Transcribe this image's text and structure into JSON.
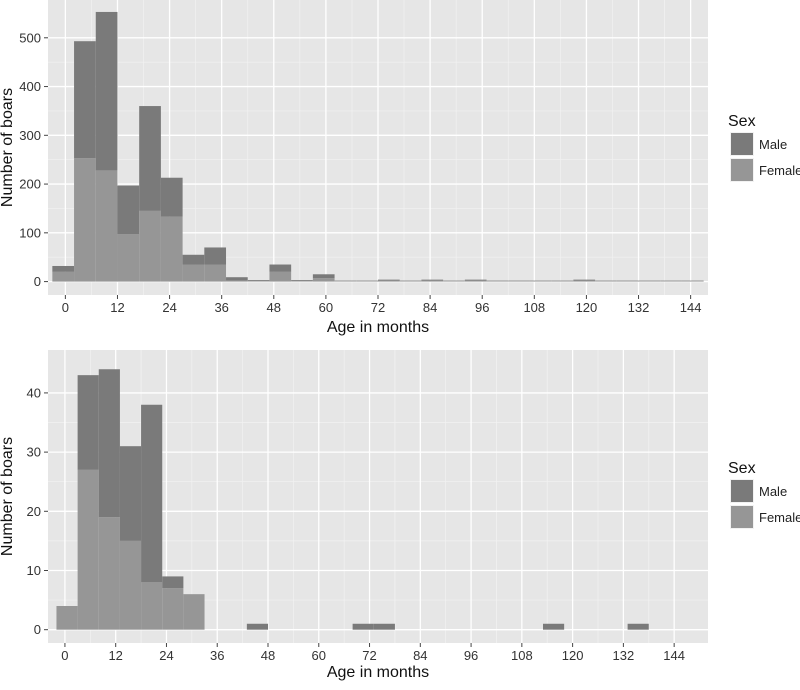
{
  "chart_data": [
    {
      "type": "bar",
      "stacked": true,
      "xlabel": "Age in months",
      "ylabel": "Number of boars",
      "ylim": [
        0,
        550
      ],
      "y_ticks": [
        0,
        100,
        200,
        300,
        400,
        500
      ],
      "x_ticks": [
        0,
        12,
        24,
        36,
        48,
        60,
        72,
        84,
        96,
        108,
        120,
        132,
        144
      ],
      "xlim": [
        -4,
        148
      ],
      "bin_width": 5,
      "grid": true,
      "legend": {
        "title": "Sex",
        "placement": "right"
      },
      "bins_start": [
        -3,
        2,
        7,
        12,
        17,
        22,
        27,
        32,
        37,
        42,
        47,
        52,
        57,
        62,
        67,
        72,
        77,
        82,
        87,
        92,
        97,
        102,
        107,
        112,
        117,
        122,
        127,
        132,
        137,
        142
      ],
      "series": [
        {
          "name": "Male",
          "color": "#7a7a7a",
          "values": [
            12,
            240,
            325,
            100,
            215,
            80,
            20,
            35,
            7,
            2,
            15,
            2,
            8,
            1,
            1,
            2,
            1,
            2,
            1,
            2,
            1,
            1,
            1,
            1,
            2,
            1,
            1,
            1,
            1,
            1
          ]
        },
        {
          "name": "Female",
          "color": "#969696",
          "values": [
            20,
            253,
            228,
            97,
            145,
            133,
            35,
            35,
            2,
            1,
            20,
            1,
            7,
            1,
            1,
            2,
            1,
            2,
            1,
            2,
            1,
            1,
            1,
            1,
            2,
            1,
            1,
            1,
            1,
            1
          ]
        }
      ]
    },
    {
      "type": "bar",
      "stacked": true,
      "xlabel": "Age in months",
      "ylabel": "Number of boars",
      "ylim": [
        0,
        45
      ],
      "y_ticks": [
        0,
        10,
        20,
        30,
        40
      ],
      "x_ticks": [
        0,
        12,
        24,
        36,
        48,
        60,
        72,
        84,
        96,
        108,
        120,
        132,
        144
      ],
      "xlim": [
        -4,
        152
      ],
      "bin_width": 5,
      "grid": true,
      "legend": {
        "title": "Sex",
        "placement": "right"
      },
      "bins_start": [
        -2,
        3,
        8,
        13,
        18,
        23,
        28,
        33,
        38,
        43,
        48,
        53,
        58,
        63,
        68,
        73,
        78,
        83,
        88,
        93,
        98,
        103,
        108,
        113,
        118,
        123,
        128,
        133,
        138,
        143
      ],
      "series": [
        {
          "name": "Male",
          "color": "#7a7a7a",
          "values": [
            0,
            16,
            25,
            16,
            30,
            2,
            0,
            0,
            0,
            1,
            0,
            0,
            0,
            0,
            1,
            1,
            0,
            0,
            0,
            0,
            0,
            0,
            0,
            1,
            0,
            0,
            0,
            1,
            0,
            0
          ]
        },
        {
          "name": "Female",
          "color": "#969696",
          "values": [
            4,
            27,
            19,
            15,
            8,
            7,
            6,
            0,
            0,
            0,
            0,
            0,
            0,
            0,
            0,
            0,
            0,
            0,
            0,
            0,
            0,
            0,
            0,
            0,
            0,
            0,
            0,
            0,
            0,
            0
          ]
        }
      ]
    }
  ]
}
